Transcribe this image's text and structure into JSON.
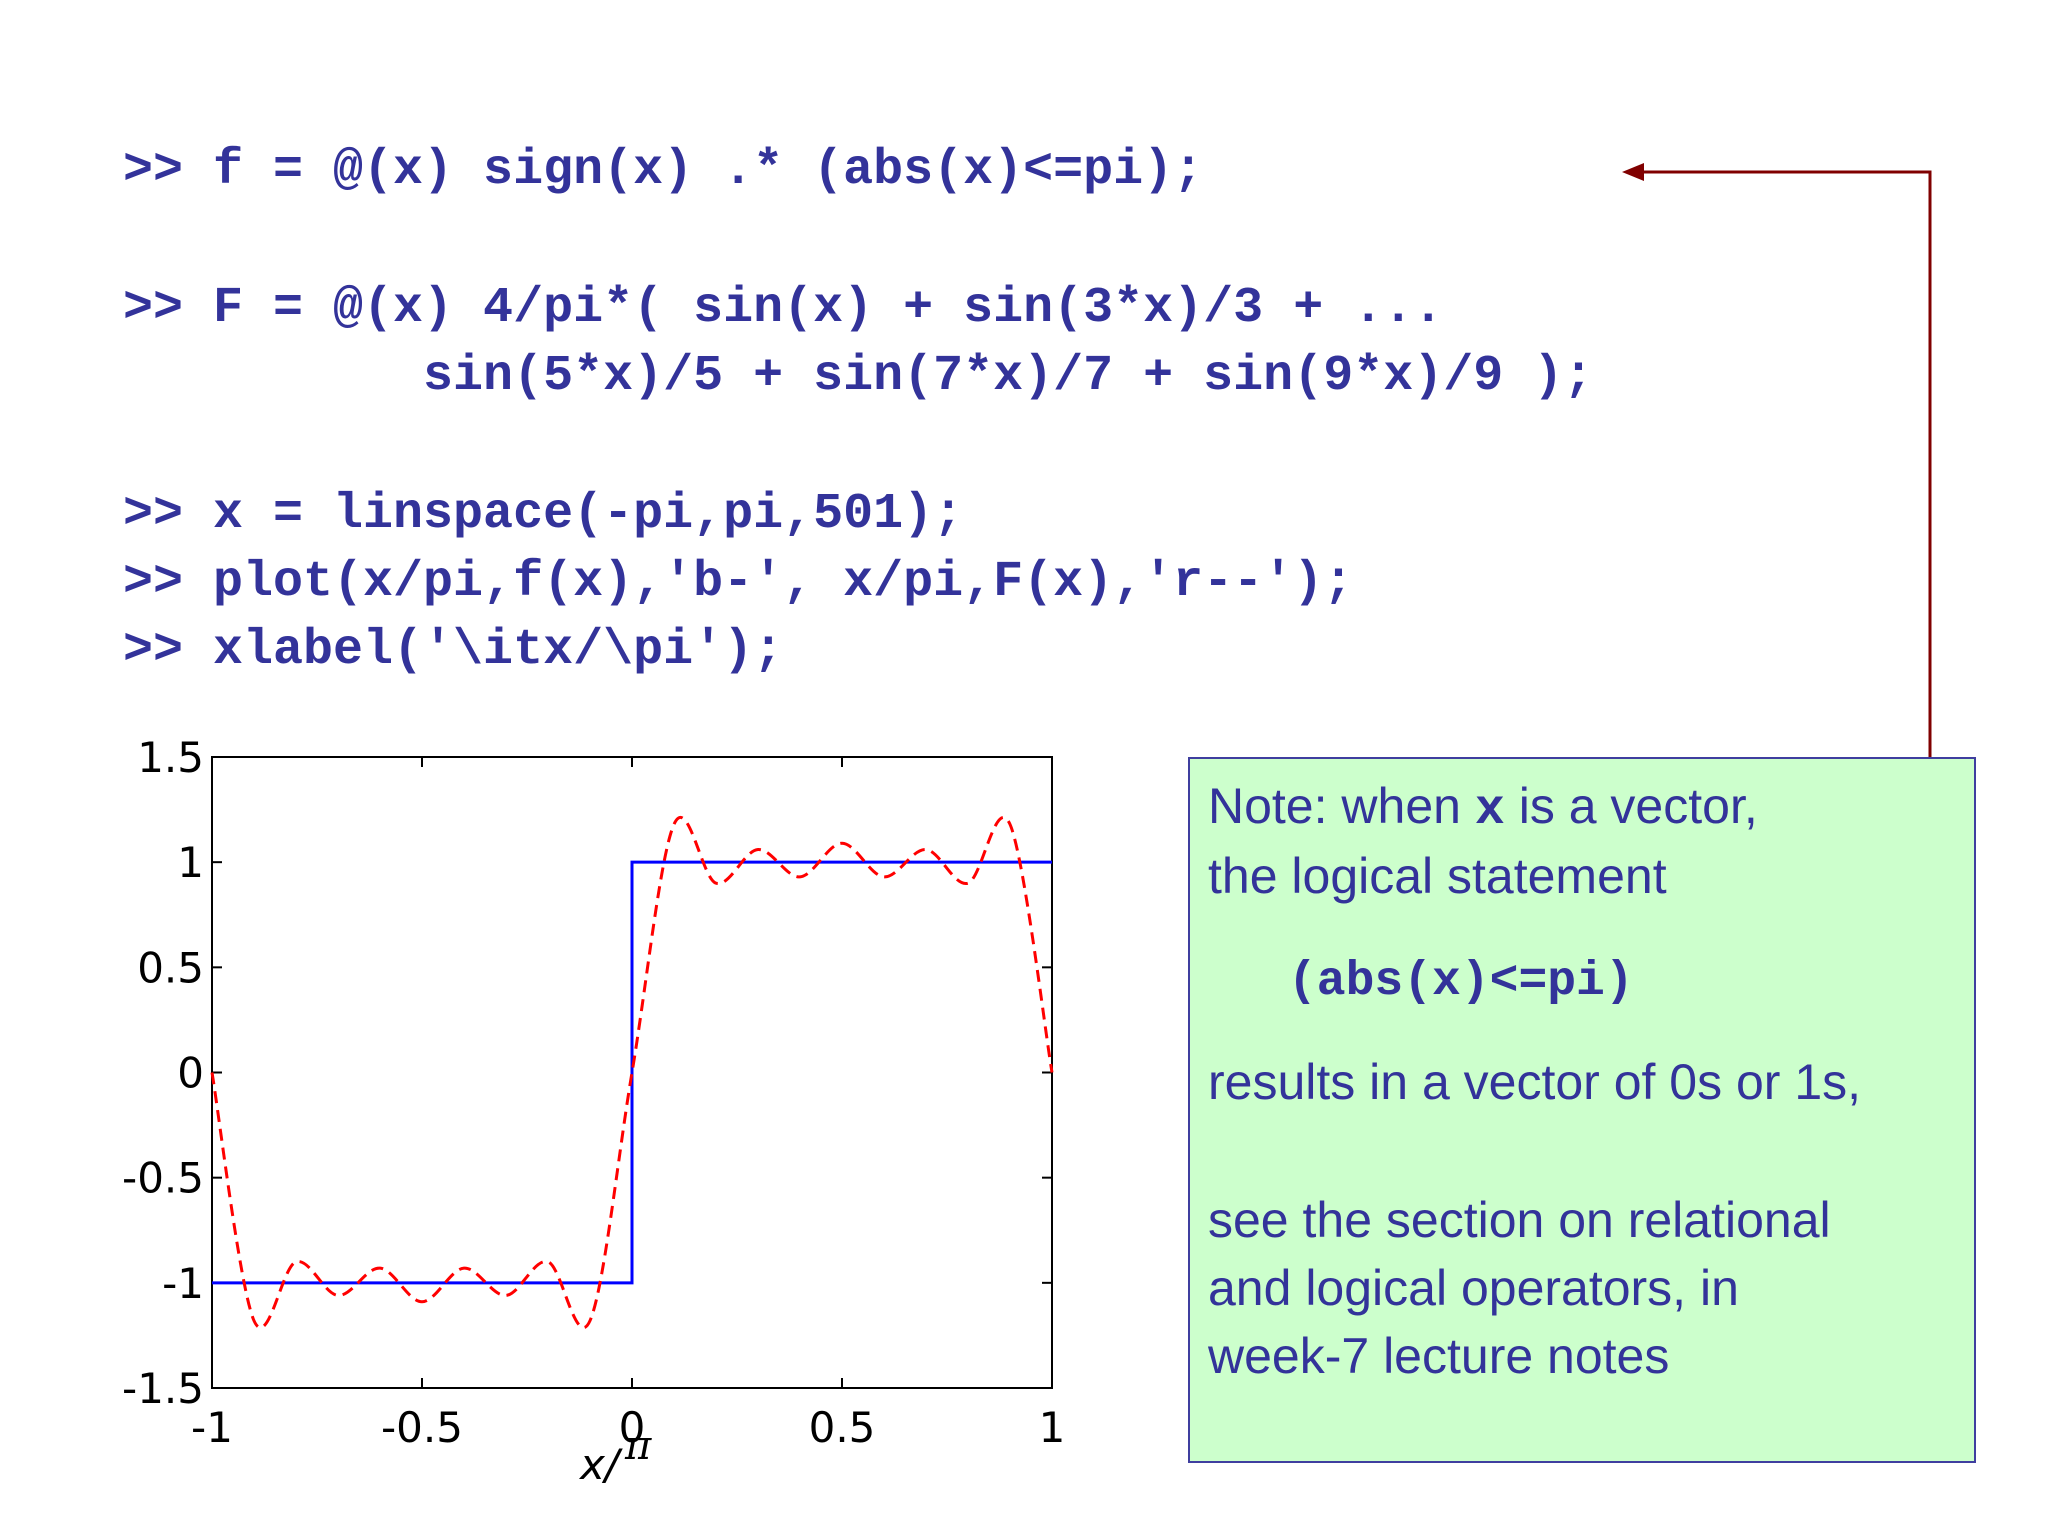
{
  "code": {
    "line1": ">> f = @(x) sign(x) .* (abs(x)<=pi);",
    "line2": ">> F = @(x) 4/pi*( sin(x) + sin(3*x)/3 + ...",
    "line3": "          sin(5*x)/5 + sin(7*x)/7 + sin(9*x)/9 );",
    "line4": ">> x = linspace(-pi,pi,501);",
    "line5": ">> plot(x/pi,f(x),'b-', x/pi,F(x),'r--');",
    "line6": ">> xlabel('\\itx/\\pi');"
  },
  "note": {
    "l1_before": "Note: when ",
    "l1_var": "x",
    "l1_after": " is a vector,",
    "l2": "the logical statement",
    "code": "(abs(x)<=pi)",
    "l3": "results in a vector of 0s or 1s,",
    "l4": "see the section on relational",
    "l5": "and logical operators, in",
    "l6": "week-7 lecture notes"
  },
  "chart_data": {
    "type": "line",
    "xlabel_x": "x/",
    "xlabel_pi": "π",
    "xlim": [
      -1,
      1
    ],
    "ylim": [
      -1.5,
      1.5
    ],
    "xticks": [
      -1,
      -0.5,
      0,
      0.5,
      1
    ],
    "yticks": [
      -1.5,
      -1,
      -0.5,
      0,
      0.5,
      1,
      1.5
    ],
    "xtick_labels": [
      "-1",
      "-0.5",
      "0",
      "0.5",
      "1"
    ],
    "ytick_labels": [
      "-1.5",
      "-1",
      "-0.5",
      "0",
      "0.5",
      "1",
      "1.5"
    ],
    "grid": false,
    "series": [
      {
        "style": "solid",
        "color": "#0000ff",
        "x": [
          -1,
          0,
          0,
          1
        ],
        "y": [
          -1,
          -1,
          1,
          1
        ]
      },
      {
        "style": "dashed",
        "color": "#ff0000",
        "x": [
          -1,
          -0.9,
          -0.8,
          -0.7,
          -0.6,
          -0.5,
          -0.4,
          -0.3,
          -0.2,
          -0.1,
          0,
          0.1,
          0.2,
          0.3,
          0.4,
          0.5,
          0.6,
          0.7,
          0.8,
          0.9,
          1
        ],
        "y": [
          0,
          -1.18,
          -0.9,
          -1.06,
          -0.93,
          -1.09,
          -0.93,
          -1.06,
          -0.9,
          -1.18,
          0,
          1.18,
          0.9,
          1.06,
          0.93,
          1.09,
          0.93,
          1.06,
          0.9,
          1.18,
          0
        ]
      }
    ]
  }
}
